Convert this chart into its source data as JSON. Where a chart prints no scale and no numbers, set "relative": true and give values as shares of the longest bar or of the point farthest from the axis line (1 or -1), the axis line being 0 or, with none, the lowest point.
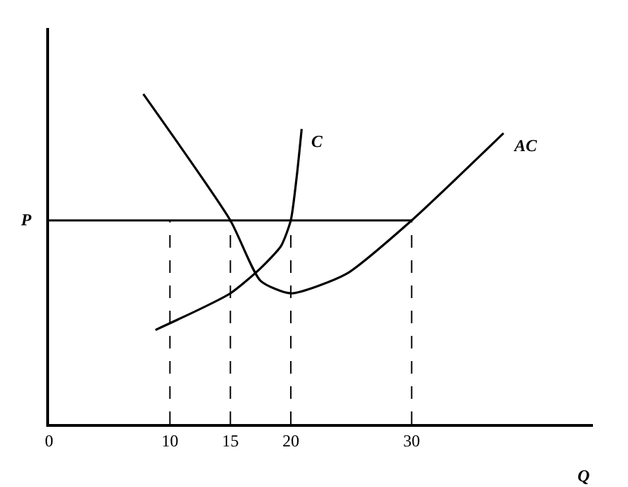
{
  "chart_data": {
    "type": "line",
    "relative": true,
    "xlabel": "Q",
    "xlim": [
      0,
      45
    ],
    "xticks": [
      0,
      10,
      15,
      20,
      30
    ],
    "grid": false,
    "legend": false,
    "marker": "none",
    "annotations": [
      {
        "text": "P",
        "x": 0,
        "y": 0.617
      }
    ],
    "series": [
      {
        "name": "C",
        "color": "#000000",
        "line_style": "solid",
        "x": [
          8.8,
          15,
          17.5,
          19.2,
          20,
          20.5,
          20.9
        ],
        "values": [
          0.285,
          0.396,
          0.472,
          0.54,
          0.617,
          0.753,
          0.894
        ]
      },
      {
        "name": "AC",
        "color": "#000000",
        "line_style": "solid",
        "x": [
          7.8,
          15,
          17.5,
          20,
          24.6,
          30,
          37.6
        ],
        "values": [
          1,
          0.617,
          0.434,
          0.396,
          0.455,
          0.617,
          0.881
        ]
      },
      {
        "color": "#000000",
        "line_style": "solid",
        "x": [
          0,
          30
        ],
        "values": [
          0.617,
          0.617
        ]
      },
      {
        "color": "#000000",
        "line_style": "dashed",
        "x": [
          10,
          10
        ],
        "values": [
          0,
          0.617
        ]
      },
      {
        "color": "#000000",
        "line_style": "dashed",
        "x": [
          15,
          15
        ],
        "values": [
          0,
          0.617
        ]
      },
      {
        "color": "#000000",
        "line_style": "dashed",
        "x": [
          20,
          20
        ],
        "values": [
          0,
          0.617
        ]
      },
      {
        "color": "#000000",
        "line_style": "dashed",
        "x": [
          30,
          30
        ],
        "values": [
          0,
          0.617
        ]
      }
    ]
  }
}
